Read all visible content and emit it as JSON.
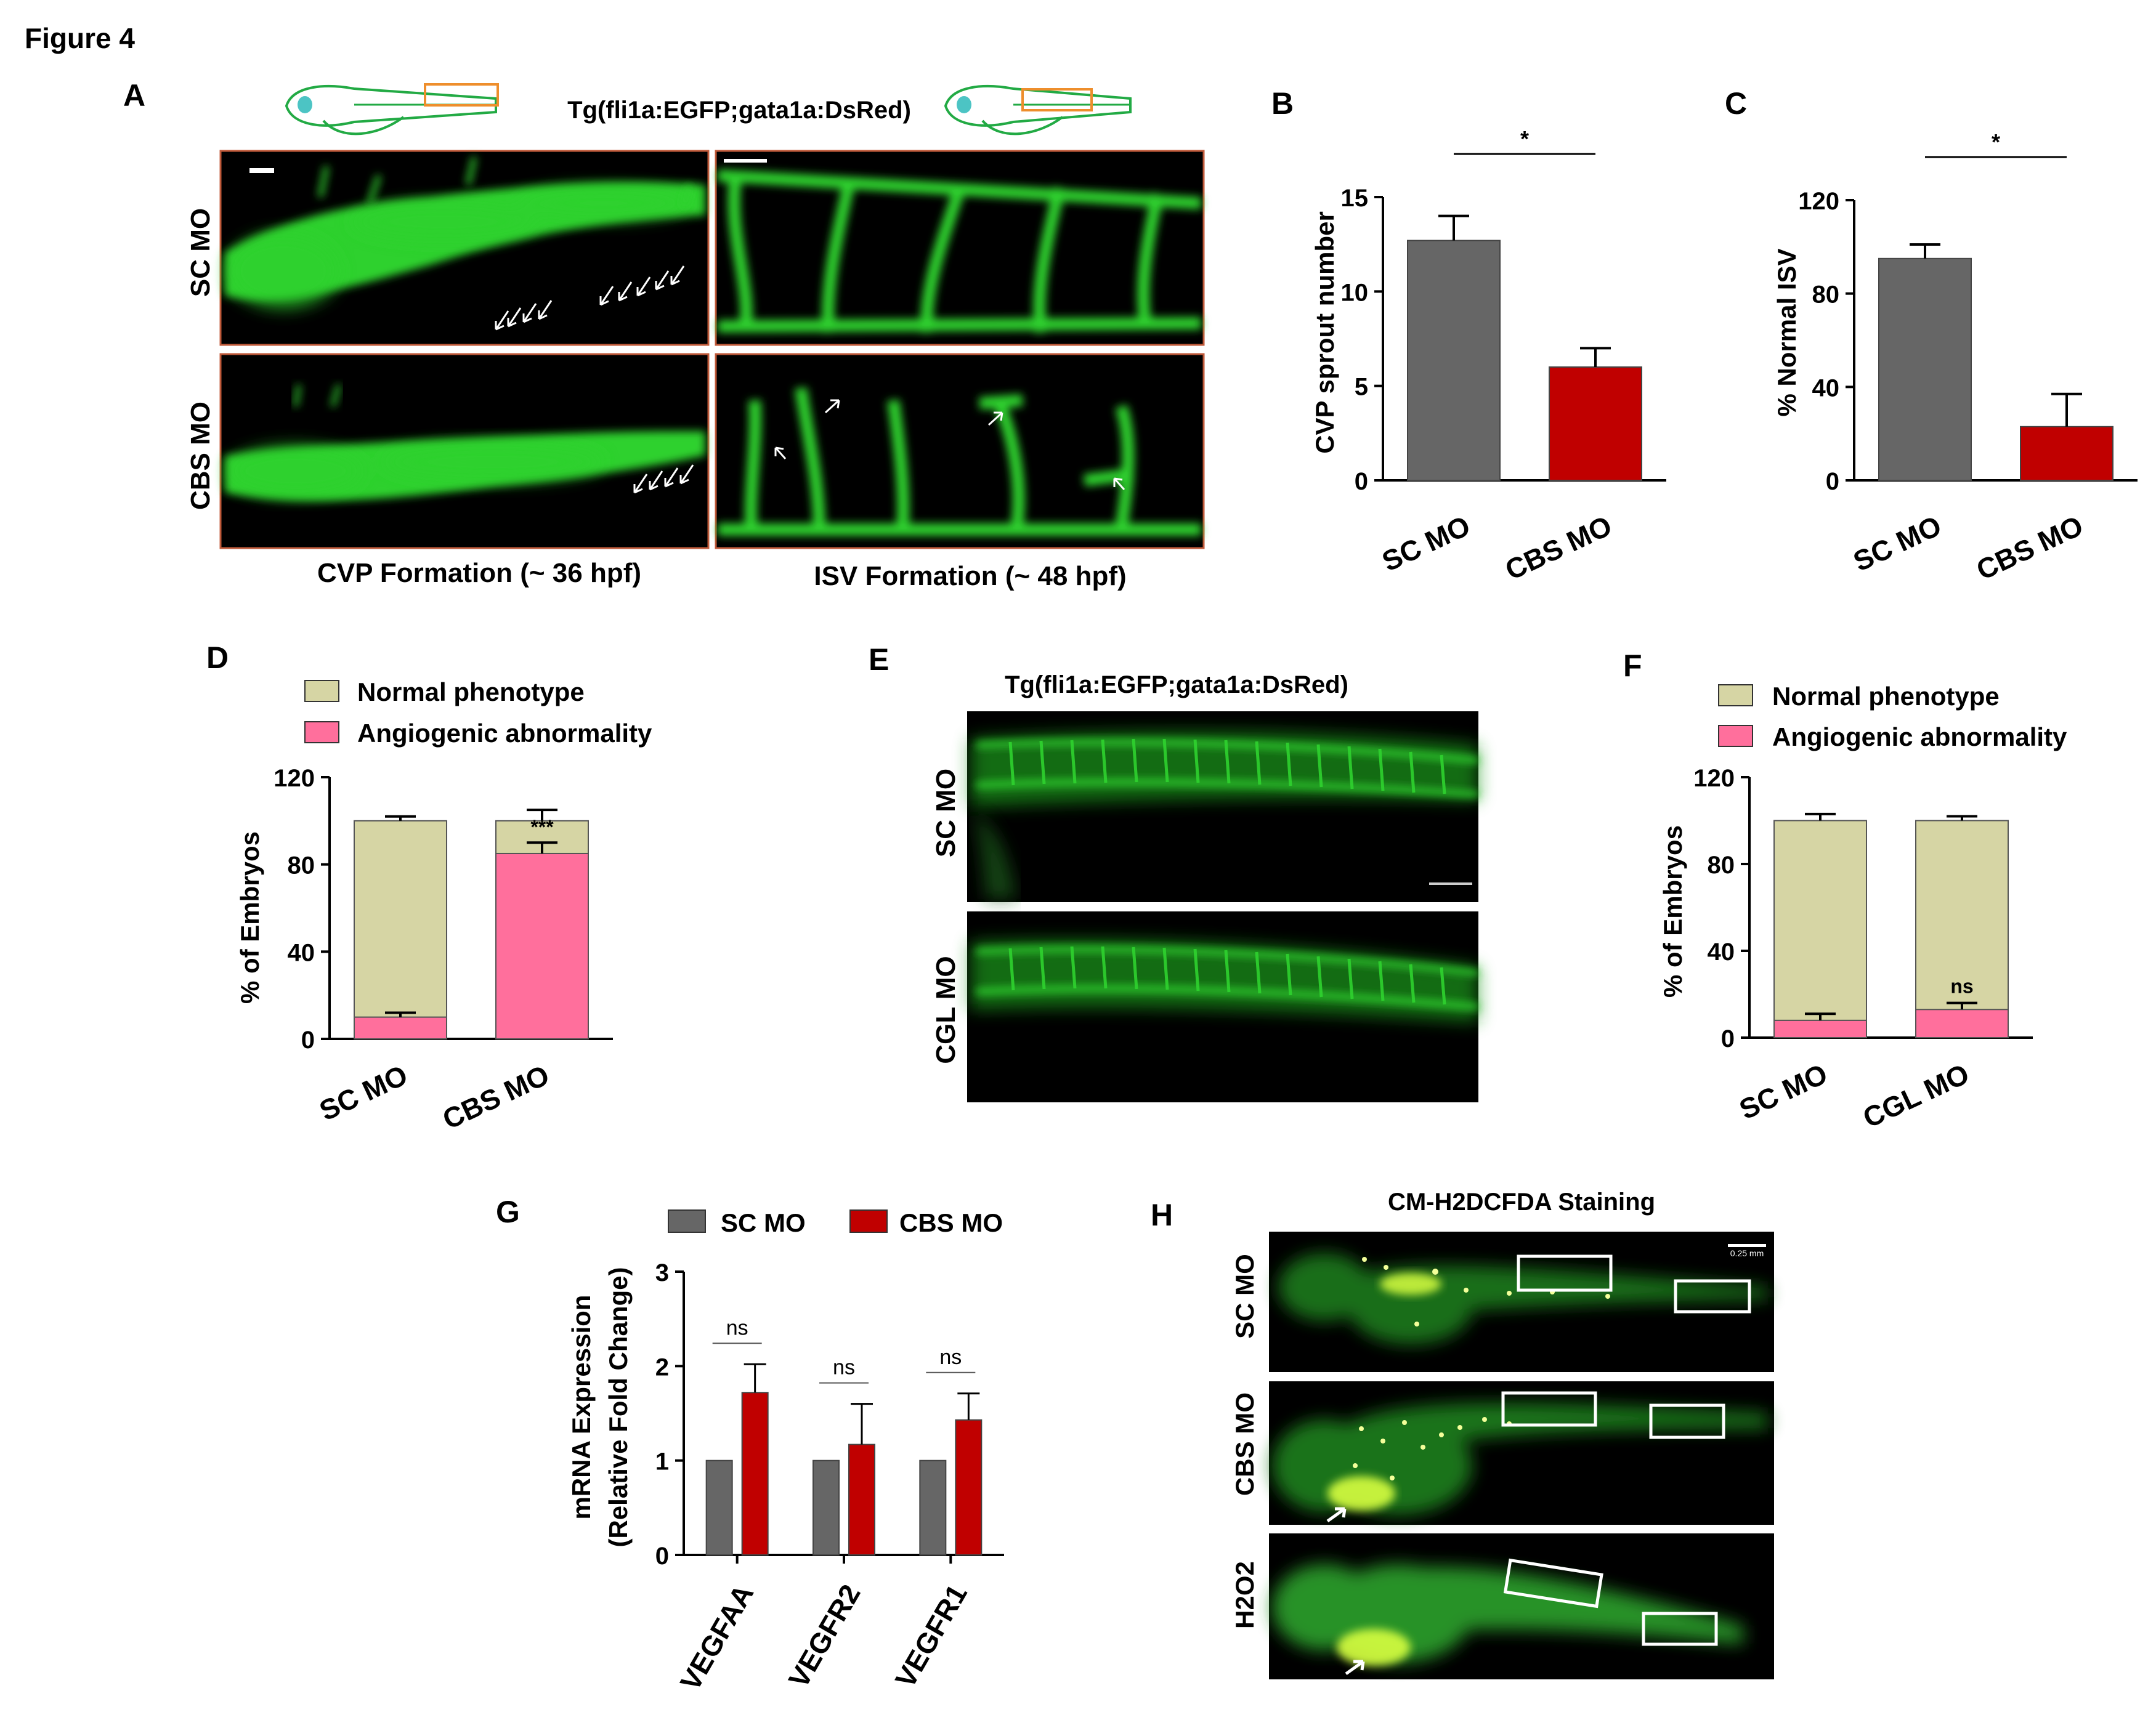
{
  "figure_title": "Figure 4",
  "colors": {
    "sc_gray": "#666666",
    "cbs_red": "#c00000",
    "normal_khaki": "#d6d5a4",
    "abnormal_pink": "#ff6f9c",
    "gfp_green": "#2fd12f",
    "orange_box": "#ee8e2c",
    "zebrafish_outline": "#22aa44",
    "micro_border": "#c05a3a"
  },
  "panel_a": {
    "letter": "A",
    "transgene": "Tg(fli1a:EGFP;gata1a:DsRed)",
    "row_labels": [
      "SC MO",
      "CBS MO"
    ],
    "col_labels": [
      "CVP Formation (~ 36 hpf)",
      "ISV Formation (~ 48 hpf)"
    ],
    "icons": [
      "zebrafish-embryo-outline-icon",
      "arrow-icon",
      "scale-bar-icon"
    ]
  },
  "chart_data": [
    {
      "panel": "B",
      "type": "bar",
      "categories": [
        "SC MO",
        "CBS MO"
      ],
      "values": [
        12.7,
        6.0
      ],
      "errors": [
        1.3,
        1.0
      ],
      "ylabel": "CVP sprout number",
      "ylim": [
        0,
        15
      ],
      "yticks": [
        "0",
        "5",
        "10",
        "15"
      ],
      "significance": "*"
    },
    {
      "panel": "C",
      "type": "bar",
      "categories": [
        "SC MO",
        "CBS MO"
      ],
      "values": [
        95,
        23
      ],
      "errors": [
        6,
        14
      ],
      "ylabel": "% Normal ISV",
      "ylim": [
        0,
        120
      ],
      "yticks": [
        "0",
        "40",
        "80",
        "120"
      ],
      "significance": "*"
    },
    {
      "panel": "D",
      "type": "bar",
      "stacked": true,
      "categories": [
        "SC MO",
        "CBS MO"
      ],
      "series": [
        {
          "name": "Angiogenic abnormality",
          "values": [
            10,
            85
          ],
          "errors": [
            2,
            5
          ]
        },
        {
          "name": "Normal phenotype",
          "values": [
            90,
            15
          ],
          "errors": [
            2,
            5
          ]
        }
      ],
      "legend": [
        "Normal phenotype",
        "Angiogenic abnormality"
      ],
      "ylabel": "% of Embryos",
      "ylim": [
        0,
        120
      ],
      "yticks": [
        "0",
        "40",
        "80",
        "120"
      ],
      "significance": "***"
    },
    {
      "panel": "F",
      "type": "bar",
      "stacked": true,
      "categories": [
        "SC MO",
        "CGL MO"
      ],
      "series": [
        {
          "name": "Angiogenic abnormality",
          "values": [
            8,
            13
          ],
          "errors": [
            3,
            3
          ]
        },
        {
          "name": "Normal phenotype",
          "values": [
            92,
            87
          ],
          "errors": [
            3,
            2
          ]
        }
      ],
      "legend": [
        "Normal phenotype",
        "Angiogenic abnormality"
      ],
      "ylabel": "% of Embryos",
      "ylim": [
        0,
        120
      ],
      "yticks": [
        "0",
        "40",
        "80",
        "120"
      ],
      "significance": "ns"
    },
    {
      "panel": "G",
      "type": "bar",
      "categories": [
        "VEGFAA",
        "VEGFR2",
        "VEGFR1"
      ],
      "series": [
        {
          "name": "SC MO",
          "values": [
            1.0,
            1.0,
            1.0
          ],
          "errors": [
            0,
            0,
            0
          ]
        },
        {
          "name": "CBS MO",
          "values": [
            1.72,
            1.17,
            1.43
          ],
          "errors": [
            0.3,
            0.43,
            0.28
          ]
        }
      ],
      "ylabel_lines": [
        "mRNA Expression",
        "(Relative Fold Change)"
      ],
      "ylim": [
        0,
        3
      ],
      "yticks": [
        "0",
        "1",
        "2",
        "3"
      ],
      "significance": [
        "ns",
        "ns",
        "ns"
      ]
    }
  ],
  "panel_e": {
    "letter": "E",
    "transgene": "Tg(fli1a:EGFP;gata1a:DsRed)",
    "row_labels": [
      "SC MO",
      "CGL MO"
    ]
  },
  "panel_h": {
    "letter": "H",
    "title": "CM-H2DCFDA Staining",
    "row_labels": [
      "SC MO",
      "CBS MO",
      "H2O2"
    ],
    "scale_label": "0.25 mm"
  }
}
